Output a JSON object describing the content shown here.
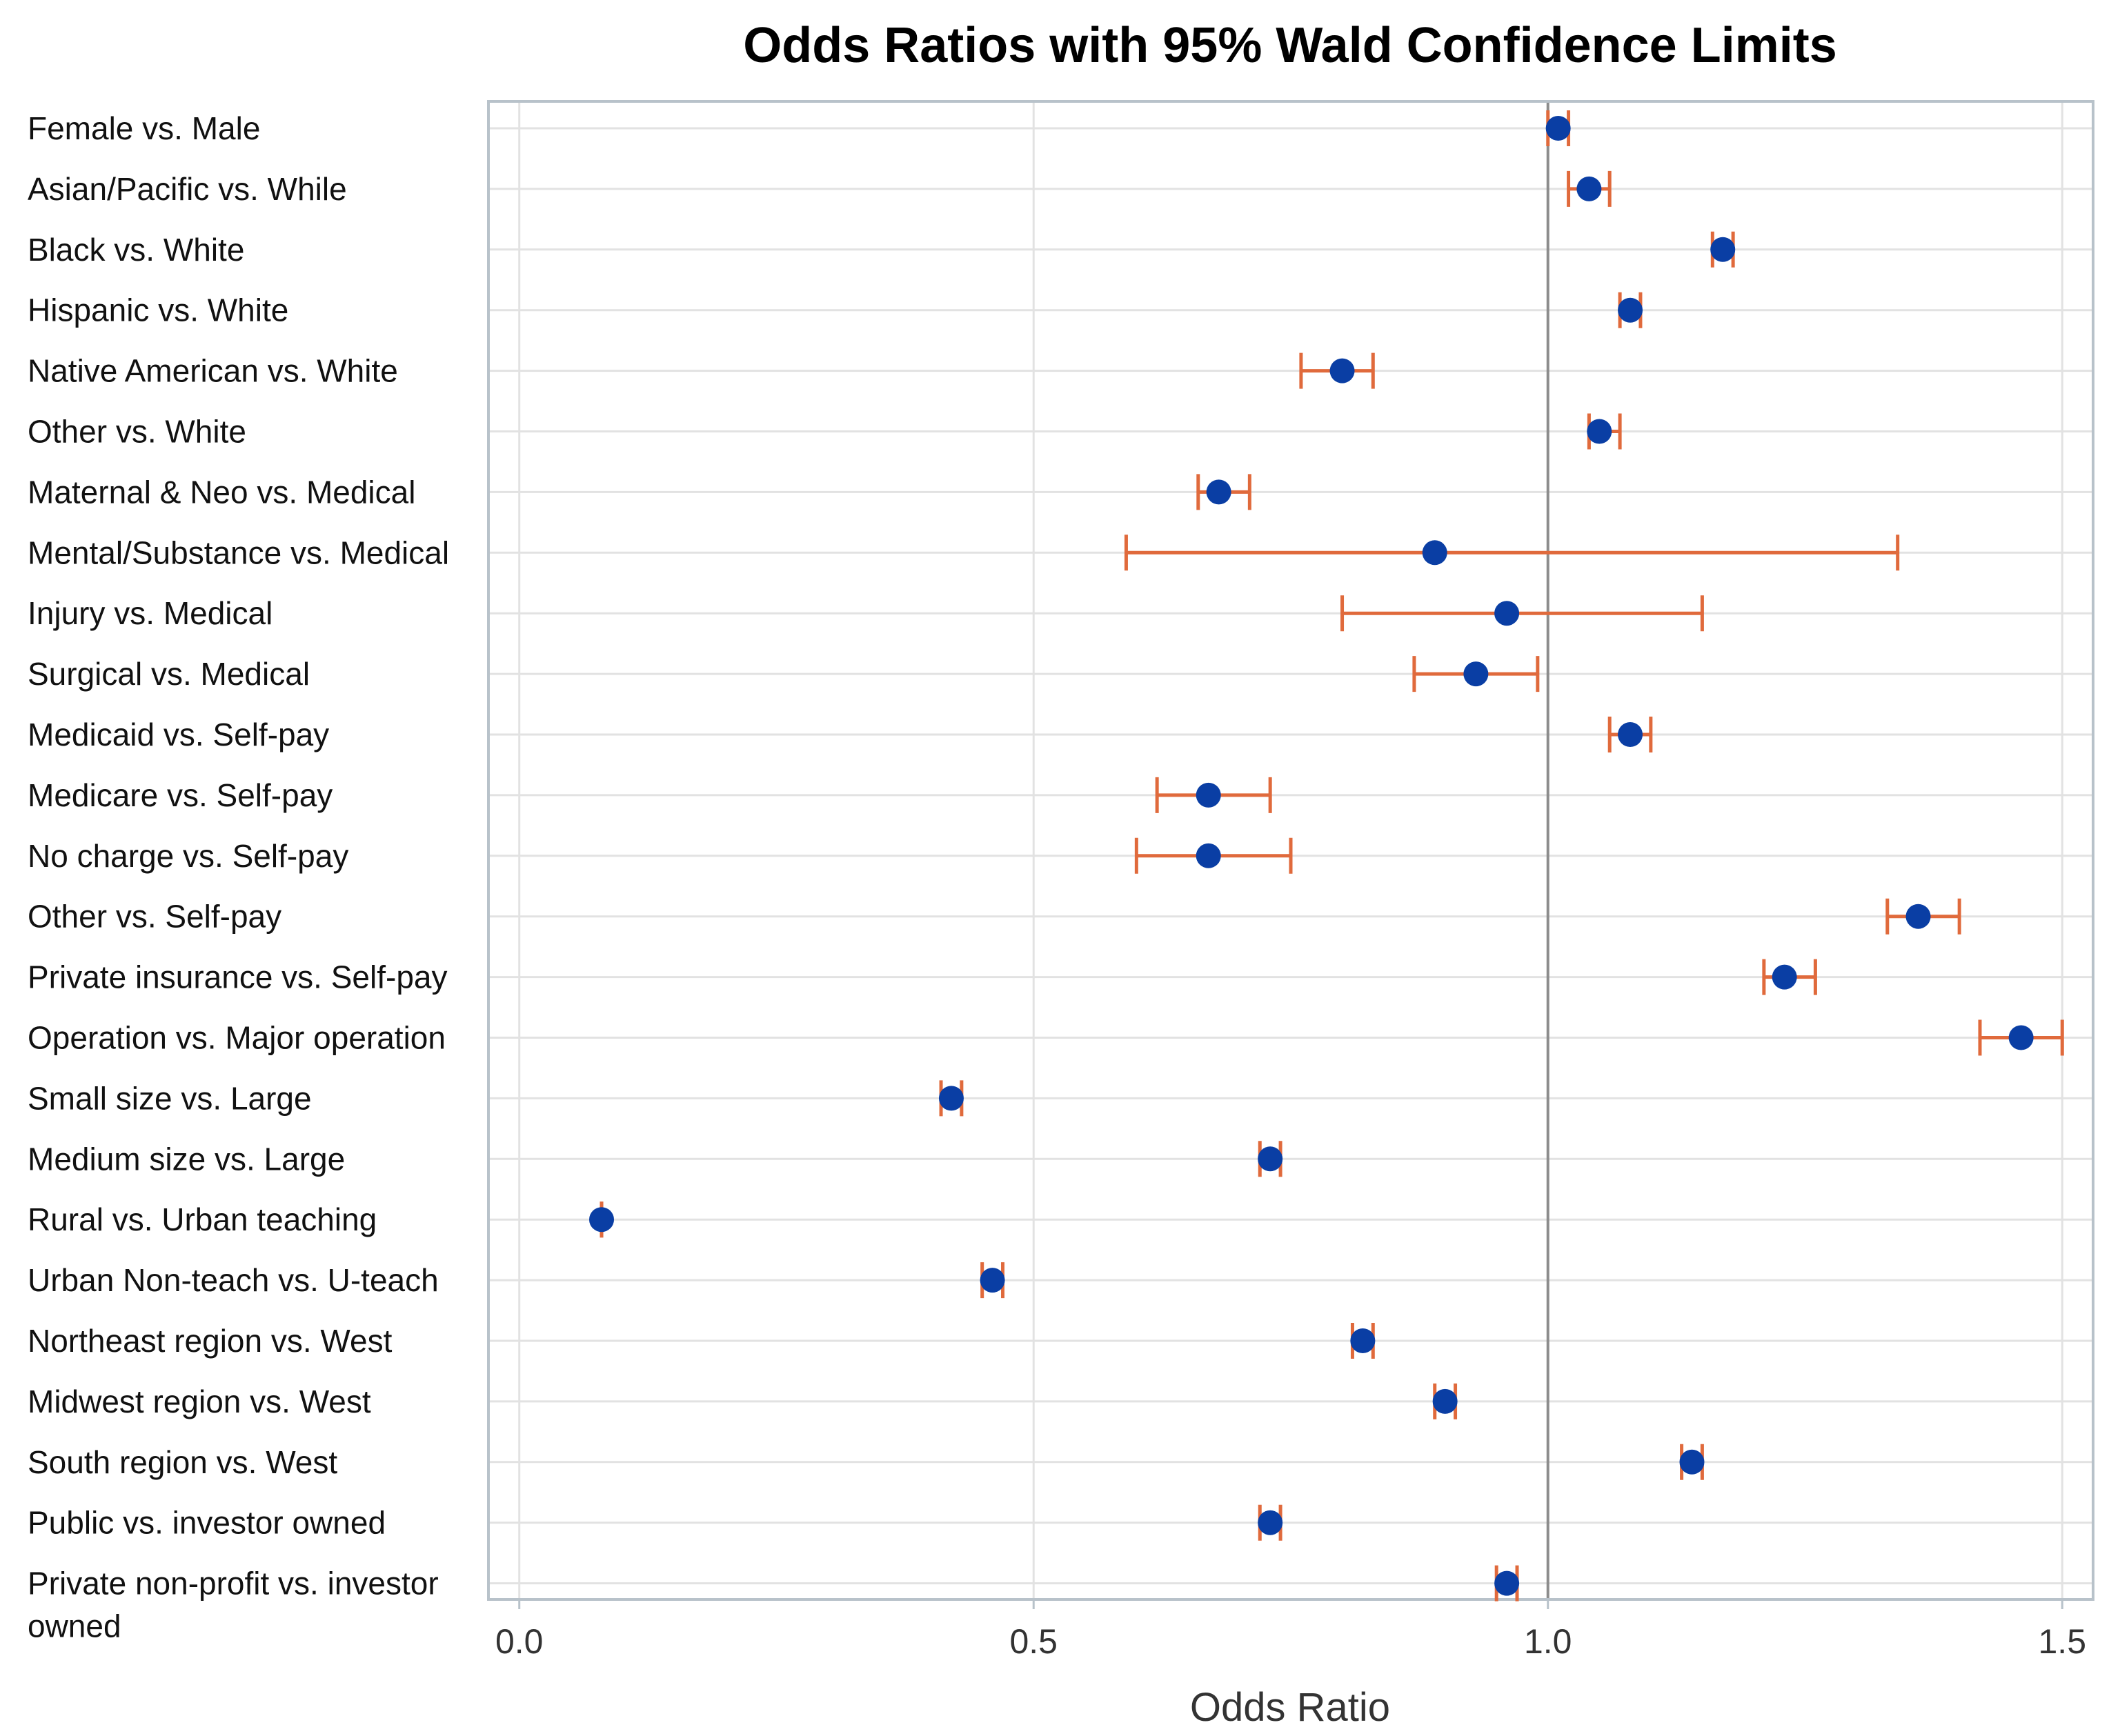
{
  "chart_data": {
    "type": "forest",
    "title": "Odds Ratios with 95% Wald Confidence Limits",
    "xlabel": "Odds Ratio",
    "ylabel": "",
    "xlim": [
      -0.03,
      1.53
    ],
    "xticks": [
      0.0,
      0.5,
      1.0,
      1.5
    ],
    "xtick_labels": [
      "0.0",
      "0.5",
      "1.0",
      "1.5"
    ],
    "reference_line": 1.0,
    "grid": true,
    "colors": {
      "point": "#0a3ea4",
      "ci": "#e06a3c",
      "grid": "#e2e2e2",
      "frame": "#b8c2ca",
      "refline": "#8c8c8c"
    },
    "rows": [
      {
        "label": [
          "Female vs. Male"
        ],
        "or": 1.01,
        "lo": 1.0,
        "hi": 1.02
      },
      {
        "label": [
          "Asian/Pacific vs. While"
        ],
        "or": 1.04,
        "lo": 1.02,
        "hi": 1.06
      },
      {
        "label": [
          "Black vs. White"
        ],
        "or": 1.17,
        "lo": 1.16,
        "hi": 1.18
      },
      {
        "label": [
          "Hispanic vs. White"
        ],
        "or": 1.08,
        "lo": 1.07,
        "hi": 1.09
      },
      {
        "label": [
          "Native American vs. White"
        ],
        "or": 0.8,
        "lo": 0.76,
        "hi": 0.83
      },
      {
        "label": [
          "Other vs. White"
        ],
        "or": 1.05,
        "lo": 1.04,
        "hi": 1.07
      },
      {
        "label": [
          "Maternal & Neo vs. Medical"
        ],
        "or": 0.68,
        "lo": 0.66,
        "hi": 0.71
      },
      {
        "label": [
          "Mental/Substance vs. Medical"
        ],
        "or": 0.89,
        "lo": 0.59,
        "hi": 1.34
      },
      {
        "label": [
          "Injury vs. Medical"
        ],
        "or": 0.96,
        "lo": 0.8,
        "hi": 1.15
      },
      {
        "label": [
          "Surgical vs. Medical"
        ],
        "or": 0.93,
        "lo": 0.87,
        "hi": 0.99
      },
      {
        "label": [
          "Medicaid vs. Self-pay"
        ],
        "or": 1.08,
        "lo": 1.06,
        "hi": 1.1
      },
      {
        "label": [
          "Medicare vs. Self-pay"
        ],
        "or": 0.67,
        "lo": 0.62,
        "hi": 0.73
      },
      {
        "label": [
          "No charge vs. Self-pay"
        ],
        "or": 0.67,
        "lo": 0.6,
        "hi": 0.75
      },
      {
        "label": [
          "Other vs. Self-pay"
        ],
        "or": 1.36,
        "lo": 1.33,
        "hi": 1.4
      },
      {
        "label": [
          "Private insurance vs. Self-pay"
        ],
        "or": 1.23,
        "lo": 1.21,
        "hi": 1.26
      },
      {
        "label": [
          "Operation vs. Major operation"
        ],
        "or": 1.46,
        "lo": 1.42,
        "hi": 1.5
      },
      {
        "label": [
          "Small size vs. Large"
        ],
        "or": 0.42,
        "lo": 0.41,
        "hi": 0.43
      },
      {
        "label": [
          "Medium size vs. Large"
        ],
        "or": 0.73,
        "lo": 0.72,
        "hi": 0.74
      },
      {
        "label": [
          "Rural  vs. Urban teaching"
        ],
        "or": 0.08,
        "lo": 0.08,
        "hi": 0.08
      },
      {
        "label": [
          "Urban Non-teach vs. U-teach"
        ],
        "or": 0.46,
        "lo": 0.45,
        "hi": 0.47
      },
      {
        "label": [
          "Northeast region vs. West"
        ],
        "or": 0.82,
        "lo": 0.81,
        "hi": 0.83
      },
      {
        "label": [
          "Midwest region vs. West"
        ],
        "or": 0.9,
        "lo": 0.89,
        "hi": 0.91
      },
      {
        "label": [
          "South region vs. West"
        ],
        "or": 1.14,
        "lo": 1.13,
        "hi": 1.15
      },
      {
        "label": [
          "Public vs. investor owned"
        ],
        "or": 0.73,
        "lo": 0.72,
        "hi": 0.74
      },
      {
        "label": [
          "Private non-profit  vs. investor",
          "owned"
        ],
        "or": 0.96,
        "lo": 0.95,
        "hi": 0.97
      }
    ]
  }
}
